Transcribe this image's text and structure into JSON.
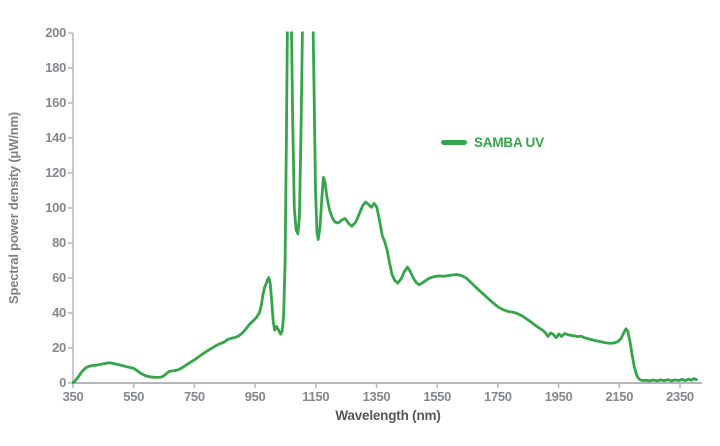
{
  "chart_data": {
    "type": "line",
    "title": "",
    "xlabel": "Wavelength (nm)",
    "ylabel": "Spectral power density (μW/nm)",
    "xlim": [
      350,
      2400
    ],
    "ylim": [
      0,
      200
    ],
    "x_ticks": [
      350,
      550,
      750,
      950,
      1150,
      1350,
      1550,
      1750,
      1950,
      2150,
      2350
    ],
    "y_ticks": [
      0,
      20,
      40,
      60,
      80,
      100,
      120,
      140,
      160,
      180,
      200
    ],
    "grid": false,
    "legend_position": "inside-right-upper",
    "note": "Two narrow emission spikes near 1065 nm and 1130 nm exceed the axis maximum and are clipped at 200 uW/nm (plotted here with values > 200 and clipped by the plot area)",
    "series": [
      {
        "name": "SAMBA UV",
        "color": "#35a54b",
        "points": [
          [
            350,
            0.3
          ],
          [
            357,
            1.2
          ],
          [
            365,
            3
          ],
          [
            374,
            5.2
          ],
          [
            383,
            7.2
          ],
          [
            393,
            8.8
          ],
          [
            403,
            9.6
          ],
          [
            414,
            10
          ],
          [
            425,
            10.1
          ],
          [
            437,
            10.5
          ],
          [
            449,
            10.9
          ],
          [
            460,
            11.3
          ],
          [
            470,
            11.6
          ],
          [
            482,
            11.2
          ],
          [
            494,
            10.7
          ],
          [
            507,
            10.2
          ],
          [
            520,
            9.6
          ],
          [
            535,
            9
          ],
          [
            550,
            8.4
          ],
          [
            562,
            7
          ],
          [
            575,
            5.4
          ],
          [
            588,
            4.2
          ],
          [
            600,
            3.6
          ],
          [
            613,
            3.3
          ],
          [
            627,
            3.2
          ],
          [
            640,
            3.4
          ],
          [
            650,
            4.2
          ],
          [
            658,
            5.4
          ],
          [
            666,
            6.5
          ],
          [
            676,
            6.9
          ],
          [
            686,
            7.1
          ],
          [
            697,
            7.6
          ],
          [
            710,
            8.8
          ],
          [
            724,
            10.4
          ],
          [
            737,
            11.9
          ],
          [
            750,
            13.2
          ],
          [
            764,
            14.9
          ],
          [
            778,
            16.7
          ],
          [
            792,
            18.3
          ],
          [
            806,
            19.8
          ],
          [
            820,
            21.2
          ],
          [
            834,
            22.4
          ],
          [
            848,
            23.4
          ],
          [
            860,
            24.9
          ],
          [
            872,
            25.6
          ],
          [
            884,
            26
          ],
          [
            896,
            26.9
          ],
          [
            908,
            28.6
          ],
          [
            920,
            31
          ],
          [
            932,
            33.6
          ],
          [
            944,
            35.6
          ],
          [
            955,
            37.6
          ],
          [
            964,
            40
          ],
          [
            970,
            44
          ],
          [
            976,
            50.5
          ],
          [
            981,
            54.5
          ],
          [
            986,
            56.5
          ],
          [
            991,
            59
          ],
          [
            995,
            60.2
          ],
          [
            1000,
            56.5
          ],
          [
            1005,
            46
          ],
          [
            1010,
            34.5
          ],
          [
            1015,
            30.2
          ],
          [
            1021,
            32.3
          ],
          [
            1028,
            30
          ],
          [
            1034,
            27.9
          ],
          [
            1039,
            29.5
          ],
          [
            1044,
            38
          ],
          [
            1049,
            70
          ],
          [
            1053,
            140
          ],
          [
            1057,
            215
          ],
          [
            1063,
            240
          ],
          [
            1069,
            215
          ],
          [
            1074,
            150
          ],
          [
            1079,
            100
          ],
          [
            1085,
            87.5
          ],
          [
            1091,
            85.3
          ],
          [
            1096,
            95
          ],
          [
            1101,
            140
          ],
          [
            1106,
            200
          ],
          [
            1112,
            235
          ],
          [
            1120,
            245
          ],
          [
            1131,
            245
          ],
          [
            1139,
            225
          ],
          [
            1144,
            170
          ],
          [
            1149,
            110
          ],
          [
            1154,
            86
          ],
          [
            1158,
            82
          ],
          [
            1164,
            89
          ],
          [
            1170,
            106
          ],
          [
            1175,
            117.5
          ],
          [
            1180,
            115
          ],
          [
            1187,
            106
          ],
          [
            1195,
            99
          ],
          [
            1204,
            94.5
          ],
          [
            1213,
            92
          ],
          [
            1224,
            91.4
          ],
          [
            1236,
            93.2
          ],
          [
            1247,
            94
          ],
          [
            1258,
            91.2
          ],
          [
            1269,
            89.6
          ],
          [
            1281,
            91.8
          ],
          [
            1293,
            96.5
          ],
          [
            1305,
            101.5
          ],
          [
            1314,
            103.4
          ],
          [
            1324,
            102
          ],
          [
            1333,
            100.4
          ],
          [
            1342,
            102.6
          ],
          [
            1351,
            100.5
          ],
          [
            1360,
            93
          ],
          [
            1369,
            84
          ],
          [
            1377,
            80.8
          ],
          [
            1385,
            76
          ],
          [
            1393,
            68.5
          ],
          [
            1401,
            62
          ],
          [
            1410,
            58.7
          ],
          [
            1420,
            57.1
          ],
          [
            1431,
            59.5
          ],
          [
            1442,
            63.8
          ],
          [
            1452,
            66.2
          ],
          [
            1462,
            63.5
          ],
          [
            1472,
            59.8
          ],
          [
            1482,
            57.2
          ],
          [
            1491,
            56.1
          ],
          [
            1502,
            57.3
          ],
          [
            1514,
            58.8
          ],
          [
            1527,
            60.1
          ],
          [
            1541,
            60.8
          ],
          [
            1556,
            61.2
          ],
          [
            1571,
            61
          ],
          [
            1586,
            61.4
          ],
          [
            1601,
            61.8
          ],
          [
            1616,
            62
          ],
          [
            1630,
            61.4
          ],
          [
            1644,
            60.2
          ],
          [
            1658,
            58
          ],
          [
            1671,
            55.8
          ],
          [
            1684,
            53.6
          ],
          [
            1697,
            51.6
          ],
          [
            1711,
            49.4
          ],
          [
            1725,
            47.2
          ],
          [
            1739,
            45.1
          ],
          [
            1752,
            43.3
          ],
          [
            1766,
            42
          ],
          [
            1779,
            41.1
          ],
          [
            1792,
            40.6
          ],
          [
            1805,
            40.2
          ],
          [
            1818,
            39.4
          ],
          [
            1831,
            38.2
          ],
          [
            1844,
            36.7
          ],
          [
            1857,
            35.1
          ],
          [
            1870,
            33.4
          ],
          [
            1883,
            31.8
          ],
          [
            1896,
            30.3
          ],
          [
            1906,
            28.8
          ],
          [
            1915,
            26.6
          ],
          [
            1924,
            28.6
          ],
          [
            1933,
            27.7
          ],
          [
            1942,
            25.9
          ],
          [
            1951,
            28
          ],
          [
            1960,
            26.6
          ],
          [
            1970,
            28.3
          ],
          [
            1980,
            27.6
          ],
          [
            1991,
            27.2
          ],
          [
            2002,
            26.9
          ],
          [
            2013,
            26.5
          ],
          [
            2024,
            26.8
          ],
          [
            2035,
            25.9
          ],
          [
            2046,
            25.3
          ],
          [
            2058,
            24.8
          ],
          [
            2070,
            24.3
          ],
          [
            2082,
            23.9
          ],
          [
            2095,
            23.4
          ],
          [
            2108,
            22.9
          ],
          [
            2121,
            22.6
          ],
          [
            2134,
            22.9
          ],
          [
            2146,
            23.8
          ],
          [
            2156,
            25.5
          ],
          [
            2165,
            28.8
          ],
          [
            2172,
            31
          ],
          [
            2178,
            29.5
          ],
          [
            2185,
            24
          ],
          [
            2192,
            16.5
          ],
          [
            2199,
            9.5
          ],
          [
            2207,
            4.5
          ],
          [
            2215,
            2.2
          ],
          [
            2226,
            1.4
          ],
          [
            2238,
            1.6
          ],
          [
            2250,
            1.2
          ],
          [
            2262,
            1.7
          ],
          [
            2274,
            1.2
          ],
          [
            2286,
            1.8
          ],
          [
            2298,
            1.3
          ],
          [
            2310,
            1.9
          ],
          [
            2322,
            1.2
          ],
          [
            2334,
            1.8
          ],
          [
            2346,
            1.4
          ],
          [
            2357,
            2.1
          ],
          [
            2367,
            1.4
          ],
          [
            2377,
            2.2
          ],
          [
            2387,
            1.6
          ],
          [
            2396,
            2.5
          ],
          [
            2404,
            1.9
          ]
        ]
      }
    ]
  },
  "legend": {
    "label": "SAMBA UV"
  },
  "colors": {
    "line_green": "#35a54b",
    "axis": "#b4b6b9",
    "tick_labels": "#84878d",
    "x_title": "#55575b",
    "y_title": "#7e8187",
    "background": "#ffffff"
  }
}
